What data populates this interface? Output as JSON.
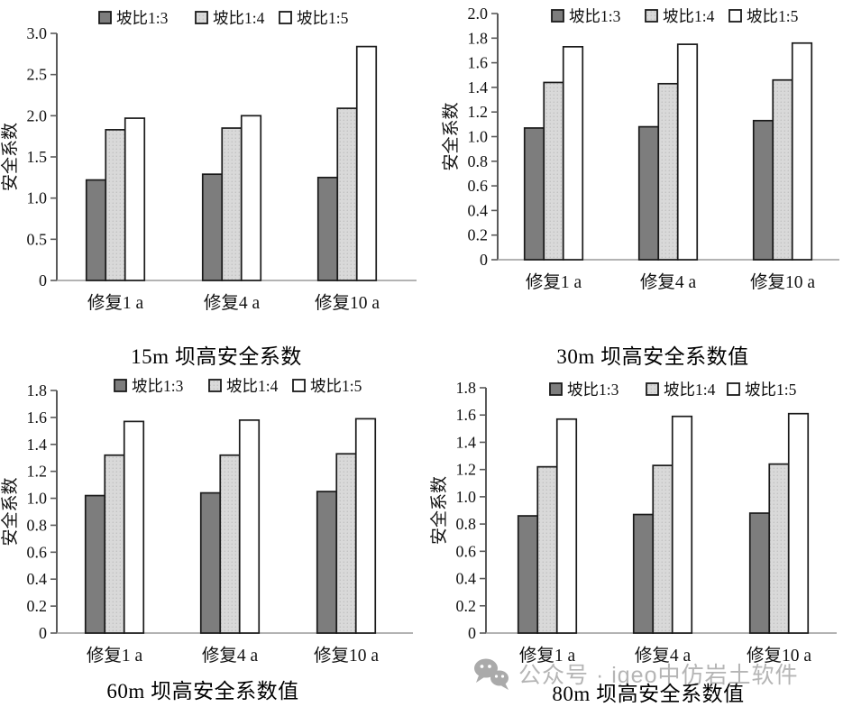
{
  "page": {
    "background": "#ffffff"
  },
  "chart_data": [
    {
      "type": "bar",
      "title": "15m 坝高安全系数",
      "ylabel": "安全系数",
      "ylim": [
        0,
        3.0
      ],
      "ytick_step": 0.5,
      "grid": false,
      "legend_position": "top",
      "categories": [
        "修复1 a",
        "修复4 a",
        "修复10 a"
      ],
      "legend_labels": [
        "坡比1:3",
        "坡比1:4",
        "坡比1:5"
      ],
      "series": [
        {
          "name": "坡比1:3",
          "values": [
            1.22,
            1.29,
            1.25
          ]
        },
        {
          "name": "坡比1:4",
          "values": [
            1.83,
            1.85,
            2.09
          ]
        },
        {
          "name": "坡比1:5",
          "values": [
            1.97,
            2.0,
            2.84
          ]
        }
      ]
    },
    {
      "type": "bar",
      "title": "30m 坝高安全系数值",
      "ylabel": "安全系数",
      "ylim": [
        0,
        2.0
      ],
      "ytick_step": 0.2,
      "grid": false,
      "legend_position": "top",
      "categories": [
        "修复1 a",
        "修复4 a",
        "修复10 a"
      ],
      "legend_labels": [
        "坡比1:3",
        "坡比1:4",
        "坡比1:5"
      ],
      "series": [
        {
          "name": "坡比1:3",
          "values": [
            1.07,
            1.08,
            1.13
          ]
        },
        {
          "name": "坡比1:4",
          "values": [
            1.44,
            1.43,
            1.46
          ]
        },
        {
          "name": "坡比1:5",
          "values": [
            1.73,
            1.75,
            1.76
          ]
        }
      ]
    },
    {
      "type": "bar",
      "title": "60m 坝高安全系数值",
      "ylabel": "安全系数",
      "ylim": [
        0,
        1.8
      ],
      "ytick_step": 0.2,
      "grid": false,
      "legend_position": "top",
      "categories": [
        "修复1 a",
        "修复4 a",
        "修复10 a"
      ],
      "legend_labels": [
        "坡比1:3",
        "坡比1:4",
        "坡比1:5"
      ],
      "series": [
        {
          "name": "坡比1:3",
          "values": [
            1.02,
            1.04,
            1.05
          ]
        },
        {
          "name": "坡比1:4",
          "values": [
            1.32,
            1.32,
            1.33
          ]
        },
        {
          "name": "坡比1:5",
          "values": [
            1.57,
            1.58,
            1.59
          ]
        }
      ]
    },
    {
      "type": "bar",
      "title": "80m 坝高安全系数值",
      "ylabel": "安全系数",
      "ylim": [
        0,
        1.8
      ],
      "ytick_step": 0.2,
      "grid": false,
      "legend_position": "top",
      "categories": [
        "修复1 a",
        "修复4 a",
        "修复10 a"
      ],
      "legend_labels": [
        "坡比1:3",
        "坡比1:4",
        "坡比1:5"
      ],
      "series": [
        {
          "name": "坡比1:3",
          "values": [
            0.86,
            0.87,
            0.88
          ]
        },
        {
          "name": "坡比1:4",
          "values": [
            1.22,
            1.23,
            1.24
          ]
        },
        {
          "name": "坡比1:5",
          "values": [
            1.57,
            1.59,
            1.61
          ]
        }
      ]
    }
  ],
  "style": {
    "bar_fill_dark": "#7d7d7d",
    "bar_fill_light": "#d9d9d9",
    "bar_dot_color": "#a9a9a9",
    "bar_fill_white": "#ffffff",
    "bar_stroke": "#1a1a1a",
    "axis_color": "#5a5a5a",
    "xaxis_color": "#9a9a9a",
    "text_color": "#111111",
    "watermark_color": "#b5b5b5"
  },
  "watermark": {
    "icon": "wechat-icon",
    "text": "公众号 · igeo中仿岩土软件"
  }
}
